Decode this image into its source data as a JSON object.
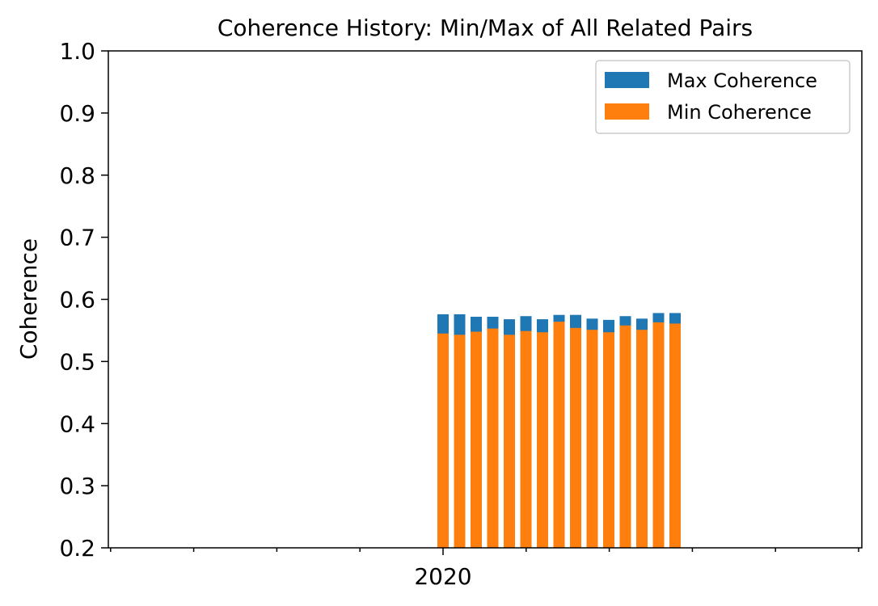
{
  "chart_data": {
    "type": "bar",
    "title": "Coherence History: Min/Max of All Related Pairs",
    "xlabel": "",
    "ylabel": "Coherence",
    "ylim": [
      0.2,
      1.0
    ],
    "yticks": [
      "0.2",
      "0.3",
      "0.4",
      "0.5",
      "0.6",
      "0.7",
      "0.8",
      "0.9",
      "1.0"
    ],
    "xticks_labeled": [
      "2020"
    ],
    "legend_position": "top-right",
    "grid": false,
    "bar_count": 15,
    "series": [
      {
        "name": "Max Coherence",
        "color": "#1f77b4",
        "values": [
          0.576,
          0.576,
          0.572,
          0.572,
          0.568,
          0.573,
          0.568,
          0.575,
          0.575,
          0.569,
          0.567,
          0.573,
          0.569,
          0.578,
          0.578
        ]
      },
      {
        "name": "Min Coherence",
        "color": "#ff7f0e",
        "values": [
          0.545,
          0.543,
          0.548,
          0.553,
          0.543,
          0.549,
          0.547,
          0.564,
          0.554,
          0.551,
          0.547,
          0.558,
          0.551,
          0.563,
          0.561
        ]
      }
    ]
  }
}
